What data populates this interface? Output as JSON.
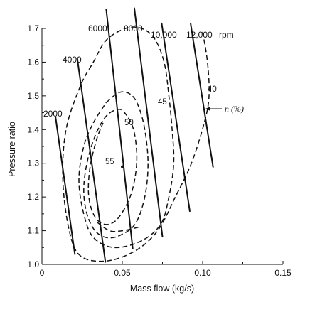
{
  "chart_data": {
    "type": "line",
    "xlabel": "Mass flow (kg/s)",
    "ylabel": "Pressure ratio",
    "xlim": [
      0,
      0.15
    ],
    "ylim": [
      1.0,
      1.7
    ],
    "x_ticks": [
      "0",
      "0.05",
      "0.10",
      "0.15"
    ],
    "y_ticks": [
      "1.0",
      "1.1",
      "1.2",
      "1.3",
      "1.4",
      "1.5",
      "1.6",
      "1.7"
    ],
    "grid": false,
    "speed_lines": [
      {
        "label": "2000",
        "points": [
          [
            0.0085,
            1.436
          ],
          [
            0.0205,
            1.03
          ]
        ]
      },
      {
        "label": "4000",
        "points": [
          [
            0.022,
            1.611
          ],
          [
            0.0395,
            1.007
          ]
        ]
      },
      {
        "label": "6000",
        "points": [
          [
            0.04,
            1.757
          ],
          [
            0.0565,
            1.047
          ]
        ]
      },
      {
        "label": "8000",
        "points": [
          [
            0.0575,
            1.76
          ],
          [
            0.075,
            1.082
          ]
        ]
      },
      {
        "label": "10,000",
        "points": [
          [
            0.0745,
            1.715
          ],
          [
            0.092,
            1.158
          ]
        ]
      },
      {
        "label": "12,000",
        "points": [
          [
            0.0925,
            1.715
          ],
          [
            0.1065,
            1.289
          ]
        ]
      }
    ],
    "speed_unit": "rpm",
    "efficiency_contours": [
      {
        "label": "40",
        "points": [
          [
            0.1,
            1.69
          ],
          [
            0.103,
            1.6
          ],
          [
            0.104,
            1.5
          ],
          [
            0.101,
            1.42
          ],
          [
            0.093,
            1.3
          ],
          [
            0.083,
            1.2
          ],
          [
            0.072,
            1.1
          ],
          [
            0.058,
            1.04
          ],
          [
            0.04,
            1.01
          ],
          [
            0.024,
            1.025
          ],
          [
            0.017,
            1.1
          ],
          [
            0.013,
            1.25
          ],
          [
            0.015,
            1.4
          ],
          [
            0.024,
            1.53
          ],
          [
            0.032,
            1.6
          ],
          [
            0.04,
            1.665
          ],
          [
            0.052,
            1.7
          ],
          [
            0.062,
            1.7
          ],
          [
            0.07,
            1.67
          ],
          [
            0.076,
            1.6
          ],
          [
            0.079,
            1.5
          ],
          [
            0.081,
            1.4
          ],
          [
            0.082,
            1.3
          ],
          [
            0.079,
            1.2
          ],
          [
            0.074,
            1.12
          ],
          [
            0.062,
            1.07
          ],
          [
            0.045,
            1.05
          ],
          [
            0.032,
            1.08
          ],
          [
            0.026,
            1.15
          ],
          [
            0.023,
            1.25
          ],
          [
            0.026,
            1.35
          ],
          [
            0.032,
            1.42
          ],
          [
            0.04,
            1.48
          ]
        ]
      },
      {
        "label": "45",
        "points": [
          [
            0.04,
            1.48
          ],
          [
            0.048,
            1.51
          ],
          [
            0.055,
            1.505
          ],
          [
            0.06,
            1.47
          ],
          [
            0.064,
            1.4
          ],
          [
            0.066,
            1.3
          ],
          [
            0.064,
            1.2
          ],
          [
            0.058,
            1.12
          ],
          [
            0.048,
            1.085
          ],
          [
            0.04,
            1.08
          ],
          [
            0.033,
            1.1
          ],
          [
            0.028,
            1.15
          ],
          [
            0.026,
            1.22
          ],
          [
            0.028,
            1.3
          ],
          [
            0.033,
            1.38
          ],
          [
            0.04,
            1.44
          ],
          [
            0.048,
            1.46
          ],
          [
            0.053,
            1.44
          ],
          [
            0.057,
            1.4
          ],
          [
            0.059,
            1.33
          ],
          [
            0.058,
            1.26
          ],
          [
            0.054,
            1.19
          ],
          [
            0.046,
            1.13
          ],
          [
            0.038,
            1.12
          ],
          [
            0.032,
            1.15
          ],
          [
            0.029,
            1.21
          ],
          [
            0.03,
            1.29
          ],
          [
            0.034,
            1.37
          ],
          [
            0.038,
            1.42
          ]
        ]
      },
      {
        "label": "50",
        "points": [
          [
            0.06,
            1.11
          ],
          [
            0.05,
            1.1
          ],
          [
            0.042,
            1.1
          ],
          [
            0.033,
            1.13
          ]
        ]
      },
      {
        "label": "55",
        "points": [
          [
            0.05,
            1.29
          ]
        ]
      }
    ],
    "annotations": [
      "40",
      "45",
      "50",
      "55",
      "n (%)"
    ]
  }
}
